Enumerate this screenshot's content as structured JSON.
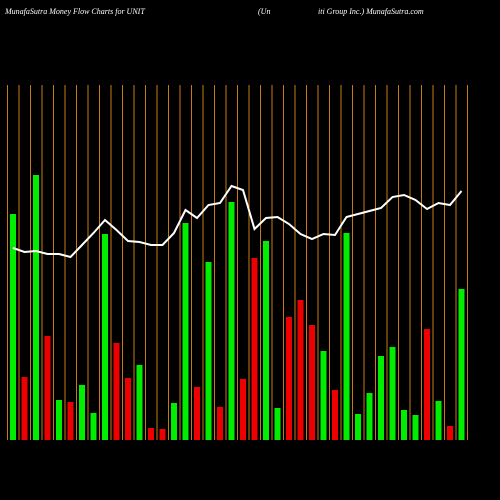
{
  "chart_data": {
    "type": "money-flow",
    "title": [
      "MunafaSutra  Money Flow  Charts for UNIT",
      "(Un",
      "iti  Group Inc.) MunafaSutra.com"
    ],
    "ylim": [
      0,
      300
    ],
    "grid": true,
    "grid_color": "#c87a12",
    "bars": {
      "values": [
        226,
        63,
        265,
        104,
        40,
        38,
        55,
        27,
        206,
        97,
        62,
        75,
        12,
        11,
        37,
        217,
        53,
        178,
        33,
        238,
        61,
        182,
        199,
        32,
        123,
        140,
        115,
        89,
        50,
        207,
        26,
        47,
        84,
        93,
        30,
        25,
        111,
        39,
        14,
        151
      ],
      "colors": [
        "#00ee00",
        "#ee0000",
        "#00ee00",
        "#ee0000",
        "#00ee00",
        "#ee0000",
        "#00ee00",
        "#00ee00",
        "#00ee00",
        "#ee0000",
        "#ee0000",
        "#00ee00",
        "#ee0000",
        "#ee0000",
        "#00ee00",
        "#00ee00",
        "#ee0000",
        "#00ee00",
        "#ee0000",
        "#00ee00",
        "#ee0000",
        "#ee0000",
        "#00ee00",
        "#00ee00",
        "#ee0000",
        "#ee0000",
        "#ee0000",
        "#00ee00",
        "#ee0000",
        "#00ee00",
        "#00ee00",
        "#00ee00",
        "#00ee00",
        "#00ee00",
        "#00ee00",
        "#00ee00",
        "#ee0000",
        "#00ee00",
        "#ee0000",
        "#00ee00"
      ]
    },
    "line": {
      "color": "#ffffff",
      "values": [
        192,
        188,
        189,
        186,
        186,
        183,
        195,
        207,
        220,
        210,
        199,
        198,
        195,
        195,
        207,
        230,
        222,
        235,
        237,
        254,
        250,
        211,
        222,
        223,
        216,
        206,
        201,
        206,
        205,
        223,
        226,
        229,
        232,
        243,
        245,
        240,
        231,
        237,
        235,
        249
      ]
    }
  }
}
